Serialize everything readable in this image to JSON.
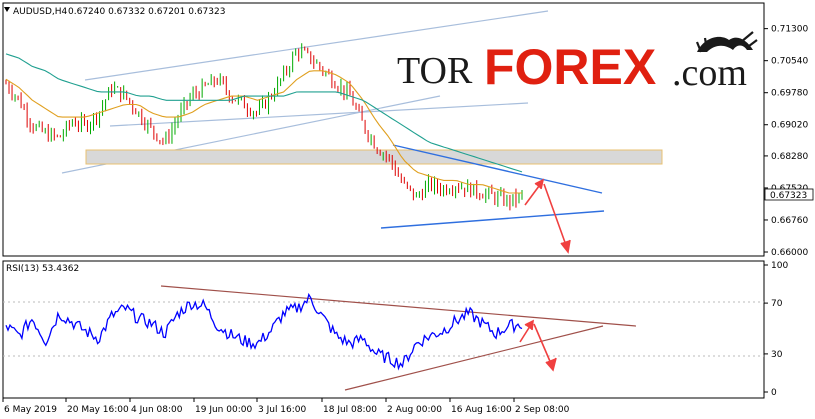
{
  "header": {
    "symbol": "AUDUSD,H4",
    "ohlc": "0.67240 0.67332 0.67201 0.67323"
  },
  "logo": {
    "part1": "TOR",
    "part2": "FOREX",
    "part3": ".com",
    "icon": "bull-bear-icon"
  },
  "rsi_header": "RSI(13) 53.4362",
  "colors": {
    "bull": "#00aa00",
    "bear": "#dd0000",
    "ma_fast": "#e0a020",
    "ma_slow": "#20a090",
    "channel": "#a8bedc",
    "triangle": "#2f6fdf",
    "rsi_line": "#0000ff",
    "rsi_trend": "#a0504a",
    "arrow": "#f04040",
    "zone": "#d0d0d0",
    "zone_border": "#e8c070"
  },
  "chart_data": [
    {
      "type": "candlestick",
      "title": "AUDUSD,H4",
      "y_ticks": [
        "0.71300",
        "0.70540",
        "0.69780",
        "0.69020",
        "0.68280",
        "0.67520",
        "0.66760",
        "0.66000"
      ],
      "ylim": [
        0.66,
        0.716
      ],
      "current_price": "0.67323",
      "x_ticks": [
        "6 May 2019",
        "20 May 16:00",
        "4 Jun 08:00",
        "19 Jun 00:00",
        "3 Jul 16:00",
        "18 Jul 08:00",
        "2 Aug 00:00",
        "16 Aug 16:00",
        "2 Sep 08:00"
      ],
      "close_path": [
        0.7,
        0.696,
        0.69,
        0.688,
        0.687,
        0.691,
        0.69,
        0.693,
        0.699,
        0.697,
        0.693,
        0.689,
        0.686,
        0.692,
        0.697,
        0.699,
        0.701,
        0.697,
        0.695,
        0.693,
        0.697,
        0.702,
        0.708,
        0.706,
        0.703,
        0.7,
        0.697,
        0.69,
        0.685,
        0.682,
        0.676,
        0.673,
        0.676,
        0.675,
        0.676,
        0.675,
        0.674,
        0.673,
        0.672,
        0.6732
      ],
      "moving_averages": [
        {
          "period": "fast",
          "values": [
            0.701,
            0.699,
            0.696,
            0.694,
            0.692,
            0.692,
            0.692,
            0.693,
            0.694,
            0.695,
            0.695,
            0.693,
            0.692,
            0.692,
            0.693,
            0.695,
            0.696,
            0.697,
            0.697,
            0.696,
            0.697,
            0.698,
            0.701,
            0.703,
            0.703,
            0.702,
            0.7,
            0.696,
            0.691,
            0.687,
            0.682,
            0.679,
            0.678,
            0.677,
            0.677,
            0.676,
            0.676,
            0.675,
            0.674,
            0.674
          ]
        },
        {
          "period": "slow",
          "values": [
            0.707,
            0.706,
            0.704,
            0.703,
            0.701,
            0.7,
            0.699,
            0.698,
            0.698,
            0.698,
            0.697,
            0.697,
            0.696,
            0.696,
            0.696,
            0.696,
            0.696,
            0.696,
            0.697,
            0.697,
            0.697,
            0.697,
            0.698,
            0.698,
            0.698,
            0.698,
            0.697,
            0.696,
            0.694,
            0.692,
            0.69,
            0.688,
            0.686,
            0.685,
            0.684,
            0.683,
            0.682,
            0.681,
            0.68,
            0.679
          ]
        }
      ],
      "support_zone": [
        0.6818,
        0.684
      ]
    },
    {
      "type": "line",
      "title": "RSI(13) 53.4362",
      "y_ticks": [
        "100",
        "70",
        "30",
        "0"
      ],
      "ylim": [
        0,
        100
      ],
      "values": [
        52,
        44,
        58,
        40,
        62,
        55,
        48,
        42,
        60,
        66,
        58,
        54,
        46,
        62,
        70,
        68,
        52,
        45,
        40,
        38,
        48,
        62,
        66,
        74,
        58,
        44,
        38,
        42,
        30,
        26,
        22,
        38,
        44,
        48,
        56,
        62,
        54,
        46,
        52,
        53.4
      ]
    }
  ]
}
